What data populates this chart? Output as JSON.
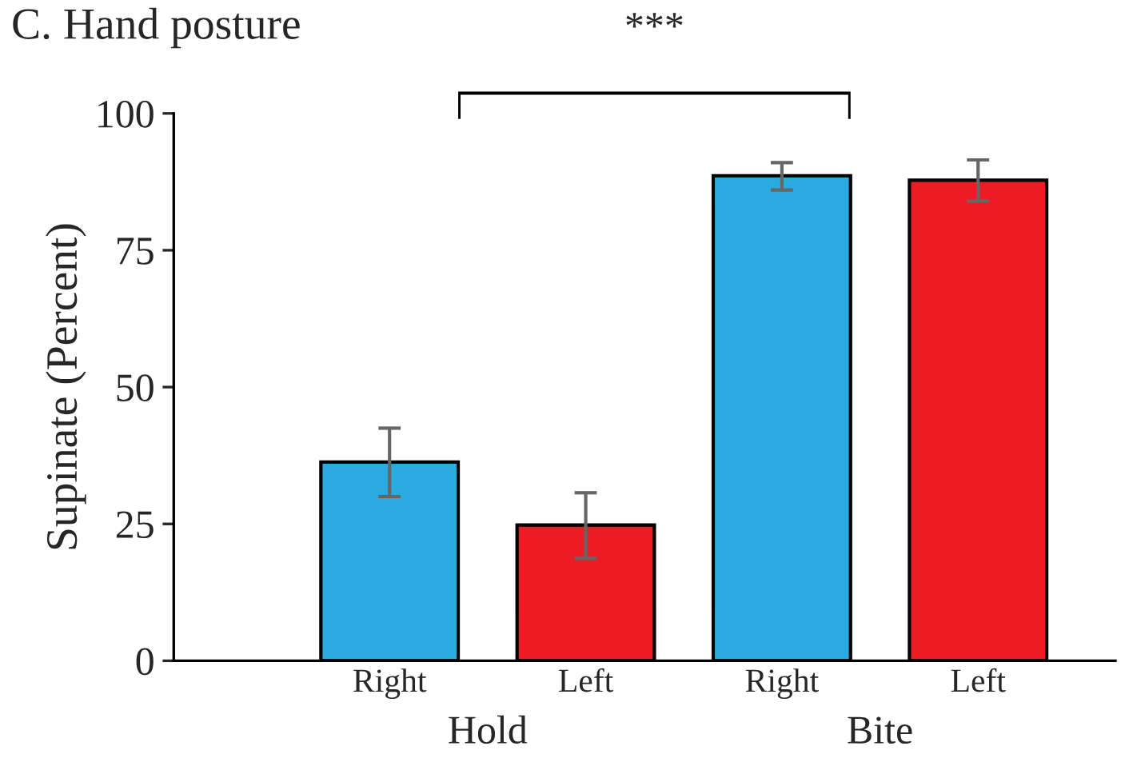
{
  "chart_data": {
    "type": "bar",
    "title": "C. Hand posture",
    "ylabel": "Supinate (Percent)",
    "categories": [
      "Right",
      "Left",
      "Right",
      "Left"
    ],
    "values": [
      36.3,
      24.8,
      88.6,
      87.8
    ],
    "colors": [
      "#29abe2",
      "#ed1c24",
      "#29abe2",
      "#ed1c24"
    ],
    "errors": [
      [
        30,
        42.5
      ],
      [
        18.7,
        30.7
      ],
      [
        86,
        91
      ],
      [
        84,
        91.5
      ]
    ],
    "ylim": [
      0,
      100
    ],
    "yticks": [
      0,
      25,
      50,
      75,
      100
    ],
    "grid": false,
    "legend": false,
    "annotations": [
      "***",
      "Hold",
      "Bite"
    ]
  }
}
